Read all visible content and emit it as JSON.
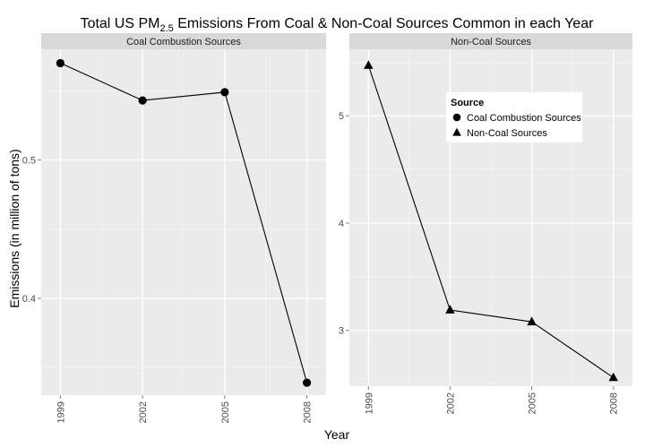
{
  "title": {
    "prefix": "Total US PM",
    "sub": "2.5",
    "suffix": " Emissions From Coal & Non-Coal Sources Common in each Year"
  },
  "xlabel": "Year",
  "ylabel": "Emissions (in million of tons)",
  "colors": {
    "panel_bg": "#ebebeb",
    "strip_bg": "#d9d9d9",
    "grid_major": "#ffffff",
    "grid_minor": "#f5f5f5",
    "line": "#000000",
    "points": "#000000"
  },
  "legend": {
    "title": "Source",
    "placement": "inside top-right of right panel",
    "items": [
      {
        "label": "Coal Combustion Sources",
        "shape": "circle"
      },
      {
        "label": "Non-Coal Sources",
        "shape": "triangle"
      }
    ]
  },
  "chart_data": [
    {
      "type": "line",
      "facet": "Coal Combustion Sources",
      "shape": "circle",
      "x": [
        1999,
        2002,
        2005,
        2008
      ],
      "y": [
        0.57,
        0.543,
        0.549,
        0.339
      ],
      "xlim": [
        1998.3,
        2008.7
      ],
      "ylim": [
        0.33,
        0.58
      ],
      "yticks": [
        0.4,
        0.5
      ],
      "yticklabels": [
        "0.4",
        "0.5"
      ],
      "xticks": [
        1999,
        2002,
        2005,
        2008
      ],
      "xticklabels": [
        "1999",
        "2002",
        "2005",
        "2008"
      ]
    },
    {
      "type": "line",
      "facet": "Non-Coal Sources",
      "shape": "triangle",
      "x": [
        1999,
        2002,
        2005,
        2008
      ],
      "y": [
        5.47,
        3.19,
        3.08,
        2.56
      ],
      "xlim": [
        1998.3,
        2008.7
      ],
      "ylim": [
        2.48,
        5.62
      ],
      "yticks": [
        3,
        4,
        5
      ],
      "yticklabels": [
        "3",
        "4",
        "5"
      ],
      "xticks": [
        1999,
        2002,
        2005,
        2008
      ],
      "xticklabels": [
        "1999",
        "2002",
        "2005",
        "2008"
      ]
    }
  ]
}
